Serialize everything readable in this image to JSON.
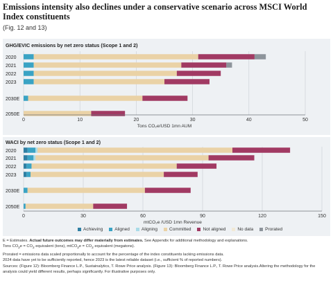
{
  "title": "Emissions intensity also declines under a conservative scenario across MSCI World Index constituents",
  "subtitle": "(Fig. 12 and 13)",
  "colors": {
    "Achieving": "#2f7fa3",
    "Aligned": "#3aa3c4",
    "Aligning": "#a9dbe8",
    "Committed": "#ead2a6",
    "Not aligned": "#a13a63",
    "No data": "#f2e9d6",
    "Prorated": "#8d949b"
  },
  "legend": [
    "Achieving",
    "Aligned",
    "Aligning",
    "Committed",
    "Not aligned",
    "No data",
    "Prorated"
  ],
  "chart_data": [
    {
      "type": "bar",
      "orientation": "horizontal",
      "stacked": true,
      "title": "GHG/EVIC emissions by net zero status (Scope 1 and 2)",
      "categories": [
        "2020",
        "2021",
        "2022",
        "2023",
        "2030E",
        "2050E"
      ],
      "xlim": [
        0,
        50
      ],
      "xticks": [
        0,
        10,
        20,
        30,
        40,
        50
      ],
      "xlabel": "Tons CO₂e/USD 1mn AUM",
      "grid": true,
      "series": [
        {
          "name": "Achieving",
          "values": [
            0,
            0,
            0,
            0,
            0,
            0
          ]
        },
        {
          "name": "Aligned",
          "values": [
            1.8,
            1.8,
            1.8,
            1.8,
            0.8,
            0
          ]
        },
        {
          "name": "Aligning",
          "values": [
            0,
            0,
            0,
            0,
            0,
            0
          ]
        },
        {
          "name": "Committed",
          "values": [
            29.2,
            26.2,
            25.4,
            23.2,
            20.3,
            12
          ]
        },
        {
          "name": "Not aligned",
          "values": [
            10,
            8,
            7.8,
            8,
            8,
            6
          ]
        },
        {
          "name": "No data",
          "values": [
            0,
            0,
            0,
            0,
            0,
            0
          ]
        },
        {
          "name": "Prorated",
          "values": [
            2,
            1,
            0,
            0,
            0,
            0
          ]
        }
      ]
    },
    {
      "type": "bar",
      "orientation": "horizontal",
      "stacked": true,
      "title": "WACI by net zero status (Scope 1 and 2)",
      "categories": [
        "2020",
        "2021",
        "2022",
        "2023",
        "2030E",
        "2050E"
      ],
      "xlim": [
        0,
        150
      ],
      "xticks": [
        0,
        30,
        60,
        90,
        120,
        150
      ],
      "xlabel": "mtCO₂e /USD 1mn Revenue",
      "grid": true,
      "series": [
        {
          "name": "Achieving",
          "values": [
            2,
            2,
            1.5,
            1.5,
            0,
            0
          ]
        },
        {
          "name": "Aligned",
          "values": [
            4,
            3,
            2.5,
            2,
            2,
            1
          ]
        },
        {
          "name": "Aligning",
          "values": [
            1,
            1,
            0,
            0,
            0,
            0
          ]
        },
        {
          "name": "Committed",
          "values": [
            98,
            87,
            73,
            67,
            59,
            34
          ]
        },
        {
          "name": "Not aligned",
          "values": [
            29,
            23,
            20,
            17,
            23,
            17
          ]
        },
        {
          "name": "No data",
          "values": [
            0,
            0,
            0,
            0,
            0,
            0
          ]
        },
        {
          "name": "Prorated",
          "values": [
            0,
            0,
            0,
            0,
            0,
            0
          ]
        }
      ]
    }
  ],
  "notes": {
    "n1_pre": "E = Estimates. ",
    "n1_bold": "Actual future outcomes may differ materially from estimates.",
    "n1_post": " See Appendix for additional methodology and explanations.",
    "n2_a": "Tons CO",
    "n2_b": "e = CO",
    "n2_c": " equivalent (tons), mtCO",
    "n2_d": "e = CO",
    "n2_e": " equivalent (megatons).",
    "sub2": "2",
    "n3": "Prorated = emissions data scaled proportionally to account for the percentage of the index constituents lacking emissions data.",
    "n4": "2024 data have yet to be sufficiently reported, hence 2023 is the latest reliable dataset (i.e., sufficient % of reported numbers).",
    "n5": "Sources: (Figure 12): Bloomberg Finance L.P., Sustainalytics, T. Rowe Price analysis. (Figure 13): Bloomberg Finance L.P., T. Rowe Price analysis.Altering the methodology for the analysis could yield different results, perhaps significantly. For illustrative purposes only."
  }
}
